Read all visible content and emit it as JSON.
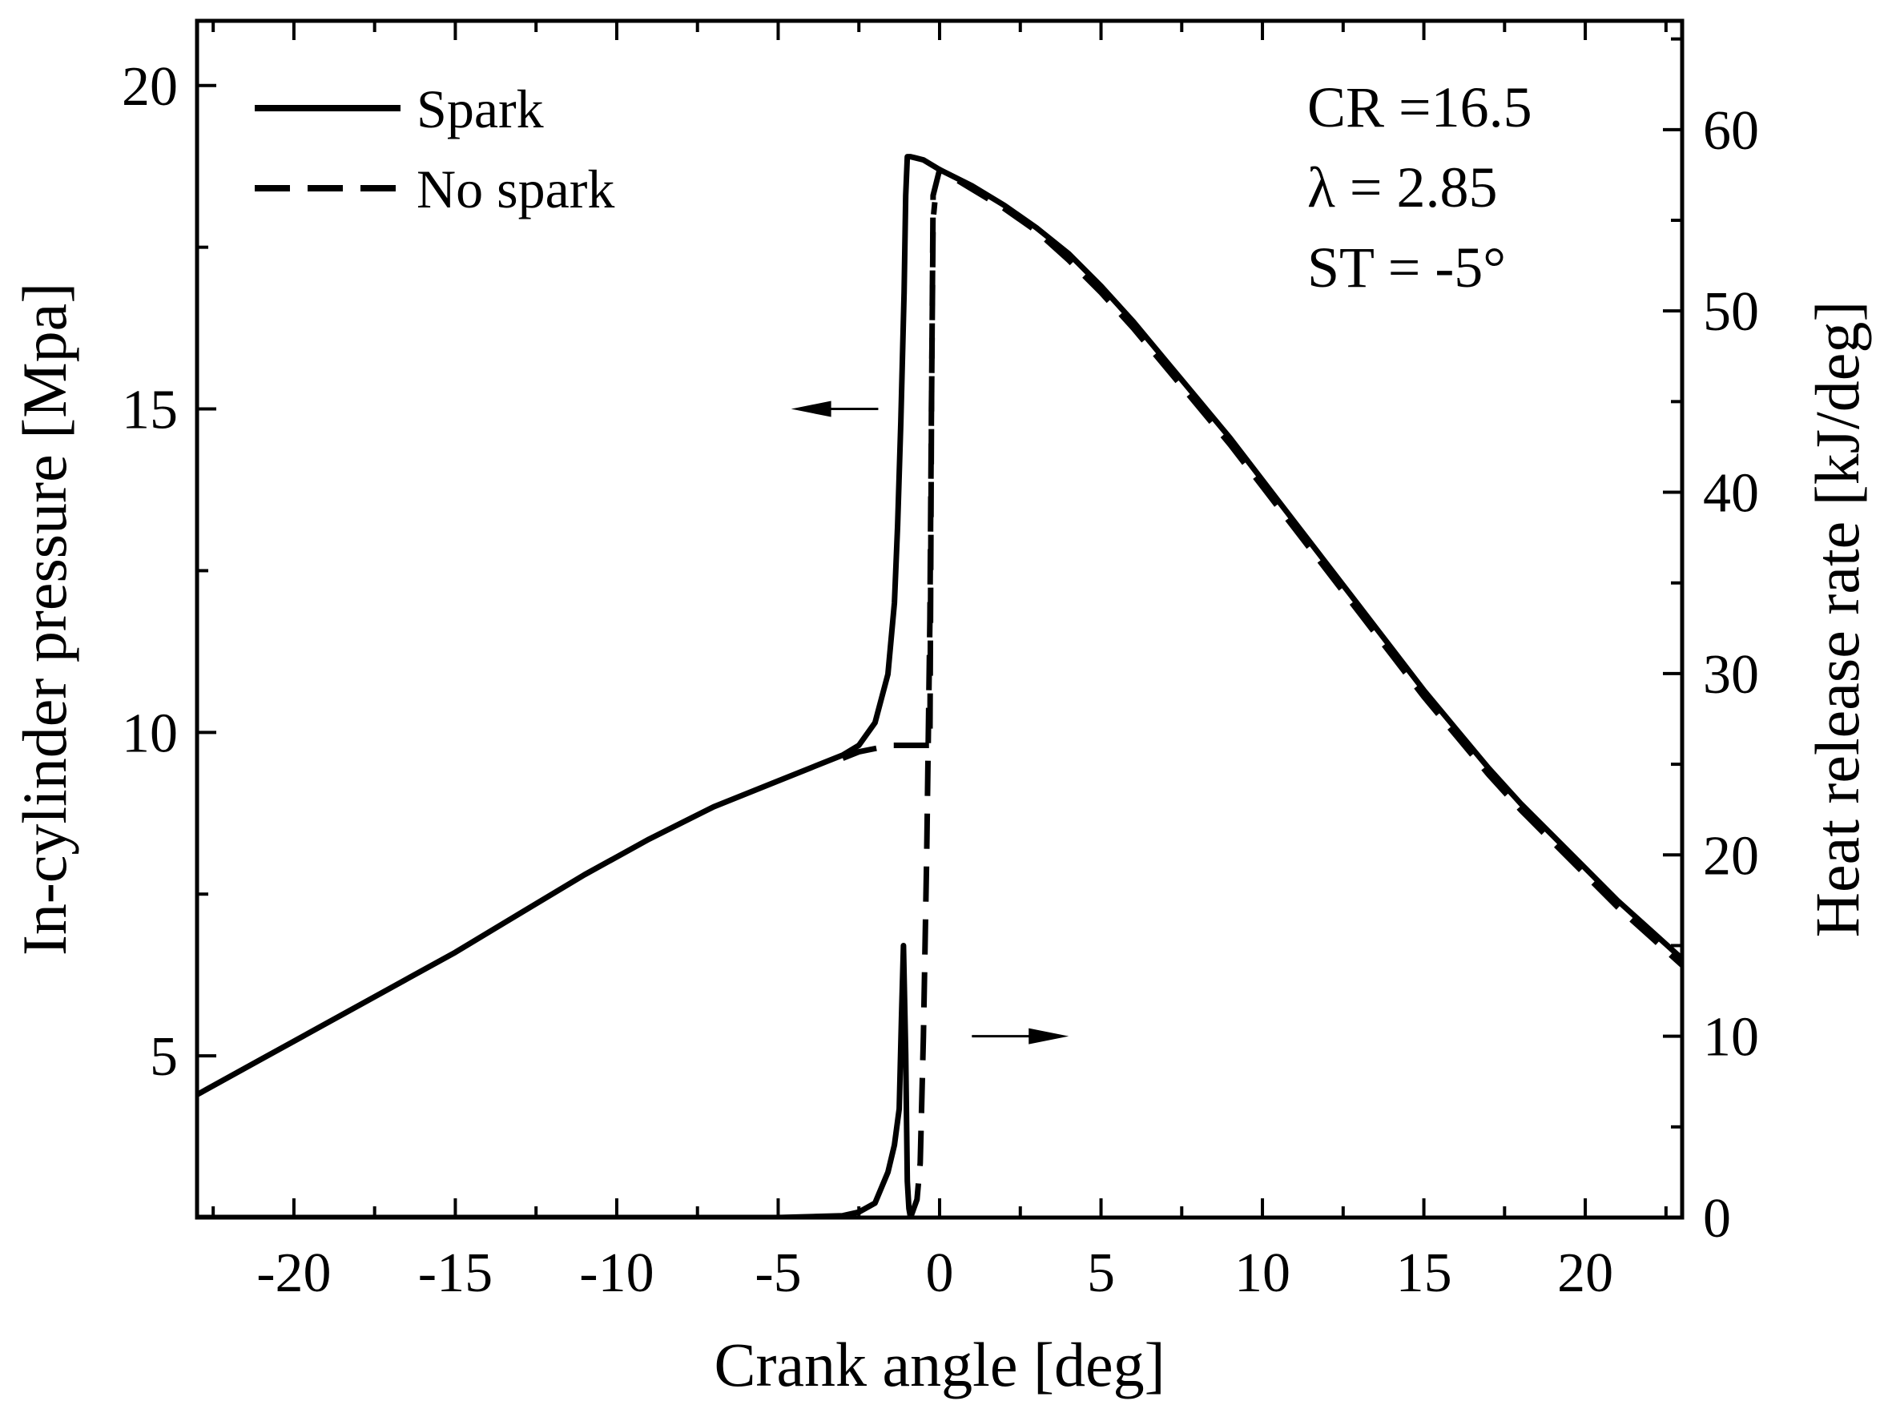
{
  "chart_data": {
    "type": "line",
    "title": "",
    "xlabel": "Crank angle [deg]",
    "ylabel_left": "In-cylinder pressure [Mpa]",
    "ylabel_right": "Heat release rate [kJ/deg]",
    "xlim": [
      -23,
      23
    ],
    "ylim_left": [
      2.5,
      21
    ],
    "ylim_right": [
      0,
      66
    ],
    "x_ticks": [
      -20,
      -15,
      -10,
      -5,
      0,
      5,
      10,
      15,
      20
    ],
    "x_tick_labels": [
      "-20",
      "-15",
      "-10",
      "-5",
      "0",
      "5",
      "10",
      "15",
      "20"
    ],
    "y_left_ticks": [
      5,
      10,
      15,
      20
    ],
    "y_left_tick_labels": [
      "5",
      "10",
      "15",
      "20"
    ],
    "y_right_ticks": [
      0,
      10,
      20,
      30,
      40,
      50,
      60
    ],
    "y_right_tick_labels": [
      "0",
      "10",
      "20",
      "30",
      "40",
      "50",
      "60"
    ],
    "annotations": [
      "CR =16.5",
      "λ = 2.85",
      "ST = -5°"
    ],
    "legend": [
      {
        "name": "Spark",
        "style": "solid"
      },
      {
        "name": "No spark",
        "style": "dashed"
      }
    ],
    "arrows": [
      {
        "points_to": "left axis",
        "at": [
          -1.0,
          15.0
        ]
      },
      {
        "points_to": "right axis",
        "at": [
          1.0,
          10.0
        ]
      }
    ],
    "series": [
      {
        "name": "Spark pressure",
        "axis": "left",
        "style": "solid",
        "x": [
          -23,
          -21,
          -19,
          -17,
          -15,
          -13,
          -11,
          -9,
          -7,
          -5,
          -4,
          -3,
          -2.5,
          -2,
          -1.6,
          -1.4,
          -1.3,
          -1.2,
          -1.1,
          -1.05,
          -1.0,
          -0.9,
          -0.5,
          0,
          1,
          2,
          3,
          4,
          5,
          6,
          7,
          8,
          9,
          10,
          11,
          12,
          13,
          14,
          15,
          16,
          17,
          18,
          19,
          20,
          21,
          22,
          23
        ],
        "y": [
          4.4,
          4.95,
          5.5,
          6.05,
          6.6,
          7.2,
          7.8,
          8.35,
          8.85,
          9.25,
          9.45,
          9.65,
          9.8,
          10.15,
          10.9,
          12.0,
          13.2,
          14.8,
          16.8,
          18.3,
          18.9,
          18.9,
          18.85,
          18.7,
          18.45,
          18.15,
          17.8,
          17.4,
          16.9,
          16.35,
          15.75,
          15.15,
          14.55,
          13.9,
          13.25,
          12.6,
          11.95,
          11.3,
          10.65,
          10.05,
          9.45,
          8.9,
          8.4,
          7.9,
          7.4,
          6.95,
          6.5
        ]
      },
      {
        "name": "No spark pressure",
        "axis": "left",
        "style": "dashed",
        "x": [
          -3.0,
          -2.5,
          -2.0,
          -1.5,
          -0.3,
          -0.25,
          -0.2,
          0,
          1,
          2,
          3,
          4,
          5,
          6,
          7,
          8,
          9,
          10,
          11,
          12,
          13,
          14,
          15,
          16,
          17,
          18,
          19,
          20,
          21,
          22,
          23
        ],
        "y": [
          9.6,
          9.7,
          9.75,
          9.8,
          9.8,
          15.0,
          18.3,
          18.7,
          18.4,
          18.1,
          17.75,
          17.3,
          16.8,
          16.25,
          15.65,
          15.05,
          14.45,
          13.8,
          13.15,
          12.5,
          11.85,
          11.2,
          10.55,
          9.95,
          9.35,
          8.8,
          8.3,
          7.8,
          7.3,
          6.85,
          6.4
        ]
      },
      {
        "name": "Spark heat release rate",
        "axis": "right",
        "style": "solid",
        "x": [
          -23,
          -5,
          -3,
          -2.5,
          -2.0,
          -1.6,
          -1.4,
          -1.25,
          -1.18,
          -1.12,
          -1.05,
          -1.0,
          -0.95,
          -0.9
        ],
        "y": [
          0,
          0,
          0.1,
          0.3,
          0.8,
          2.5,
          4.0,
          6.0,
          11.0,
          15.0,
          9.0,
          2.0,
          0.5,
          0
        ],
        "tail_x": [
          0,
          2
        ],
        "tail_y": [
          0,
          0
        ]
      },
      {
        "name": "No spark heat release rate",
        "axis": "right",
        "style": "dashed",
        "x": [
          -0.9,
          -0.7,
          -0.6,
          -0.5,
          -0.4,
          -0.3,
          -0.25,
          -0.2,
          -0.15
        ],
        "y": [
          0,
          1.0,
          3.0,
          10.0,
          20.0,
          33.0,
          45.0,
          55.0,
          56.0
        ]
      }
    ]
  }
}
